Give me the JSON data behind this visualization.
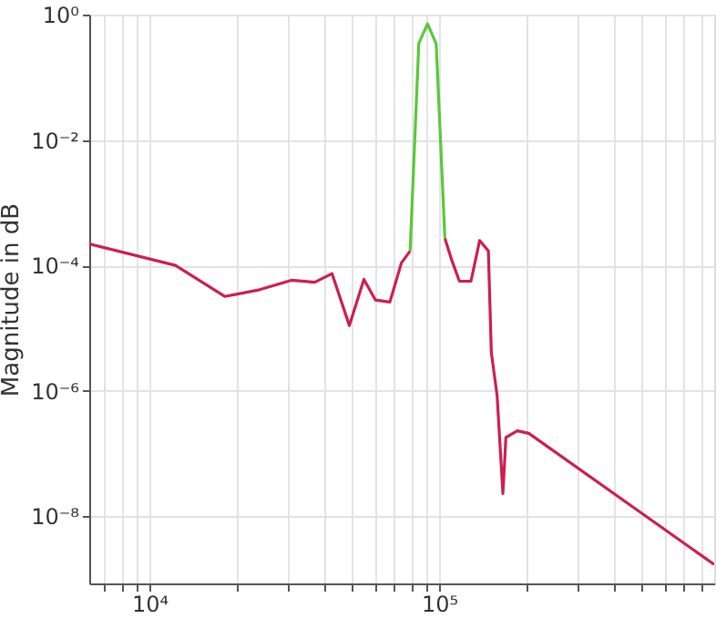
{
  "chart_data": {
    "type": "line",
    "ylabel": "Magnitude in dB",
    "log": "xy",
    "grid": true,
    "line_style": "solid",
    "marker": "none",
    "xlim": [
      6200,
      890000
    ],
    "ylim": [
      8.5e-10,
      1
    ],
    "xticks": [
      {
        "value": 7000,
        "label": null
      },
      {
        "value": 8000,
        "label": null
      },
      {
        "value": 9000,
        "label": null
      },
      {
        "value": 10000,
        "label": "10⁴"
      },
      {
        "value": 20000,
        "label": null
      },
      {
        "value": 30000,
        "label": null
      },
      {
        "value": 40000,
        "label": null
      },
      {
        "value": 50000,
        "label": null
      },
      {
        "value": 60000,
        "label": null
      },
      {
        "value": 70000,
        "label": null
      },
      {
        "value": 80000,
        "label": null
      },
      {
        "value": 90000,
        "label": null
      },
      {
        "value": 100000,
        "label": "10⁵"
      },
      {
        "value": 200000,
        "label": null
      },
      {
        "value": 300000,
        "label": null
      },
      {
        "value": 400000,
        "label": null
      },
      {
        "value": 500000,
        "label": null
      },
      {
        "value": 600000,
        "label": null
      },
      {
        "value": 700000,
        "label": null
      },
      {
        "value": 800000,
        "label": null
      }
    ],
    "yticks": [
      {
        "value": 1e-08,
        "label": "10⁻⁸"
      },
      {
        "value": 1e-06,
        "label": "10⁻⁶"
      },
      {
        "value": 0.0001,
        "label": "10⁻⁴"
      },
      {
        "value": 0.01,
        "label": "10⁻²"
      },
      {
        "value": 1,
        "label": "10⁰"
      }
    ],
    "series": [
      {
        "color": "#cc1f4f",
        "x": [
          6200,
          12300,
          18200,
          24000,
          30900,
          37200,
          42700,
          49000,
          55000,
          60300,
          67600,
          74100,
          79400
        ],
        "values": [
          0.00022,
          0.0001,
          3.2e-05,
          4.1e-05,
          5.8e-05,
          5.4e-05,
          7.4e-05,
          1.1e-05,
          6e-05,
          2.8e-05,
          2.6e-05,
          0.00011,
          0.00017
        ]
      },
      {
        "color": "#5ac83a",
        "x": [
          79400,
          85100,
          91200,
          97700,
          104700
        ],
        "values": [
          0.00017,
          0.35,
          0.71,
          0.34,
          0.00027
        ]
      },
      {
        "color": "#cc1f4f",
        "x": [
          104700,
          110000,
          117500,
          128800,
          138000,
          147900,
          151400,
          158500,
          166000,
          170000,
          186000,
          204000,
          890000
        ],
        "values": [
          0.00027,
          0.00013,
          5.6e-05,
          5.6e-05,
          0.00025,
          0.00017,
          4.1e-06,
          8.5e-07,
          2.3e-08,
          1.8e-07,
          2.3e-07,
          2.1e-07,
          1.7e-09
        ]
      }
    ]
  }
}
